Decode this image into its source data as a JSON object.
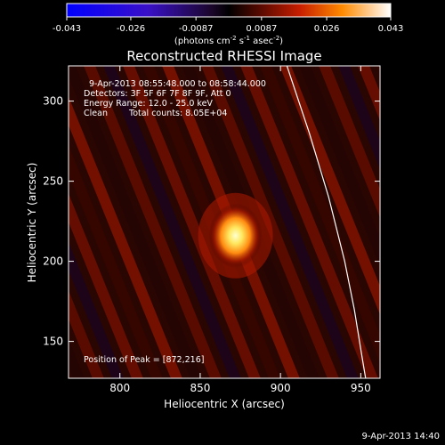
{
  "chart_data": [
    {
      "type": "colorbar",
      "min": -0.043,
      "max": 0.043,
      "tick_labels": [
        "-0.043",
        "-0.026",
        "-0.0087",
        "0.0087",
        "0.026",
        "0.043"
      ],
      "tick_values": [
        -0.043,
        -0.026,
        -0.0087,
        0.0087,
        0.026,
        0.043
      ],
      "units_prefix": "(photons cm",
      "units_exp1": "-2",
      "units_mid1": " s",
      "units_exp2": "-1",
      "units_mid2": " asec",
      "units_exp3": "-2",
      "units_suffix": ")"
    },
    {
      "type": "heatmap",
      "title": "Reconstructed RHESSI Image",
      "xlabel": "Heliocentric X (arcsec)",
      "ylabel": "Heliocentric Y (arcsec)",
      "xlim": [
        768,
        962
      ],
      "ylim": [
        127,
        322
      ],
      "x_ticks": [
        800,
        850,
        900,
        950
      ],
      "y_ticks": [
        150,
        200,
        250,
        300
      ],
      "annotations": {
        "time_range": "9-Apr-2013 08:55:48.000 to 08:58:44.000",
        "detectors": "Detectors: 3F 5F 6F 7F 8F 9F, Att 0",
        "energy": "Energy Range: 12.0 - 25.0 keV",
        "clean": "Clean",
        "counts": "Total counts: 8.05E+04",
        "peak": "Position of Peak = [872,216]"
      },
      "peak": {
        "x": 872,
        "y": 216
      },
      "limb_curve": [
        [
          904,
          322
        ],
        [
          918,
          280
        ],
        [
          930,
          240
        ],
        [
          940,
          200
        ],
        [
          946,
          170
        ],
        [
          950,
          145
        ],
        [
          953,
          127
        ]
      ]
    }
  ],
  "footer": {
    "date": "9-Apr-2013 14:40"
  }
}
